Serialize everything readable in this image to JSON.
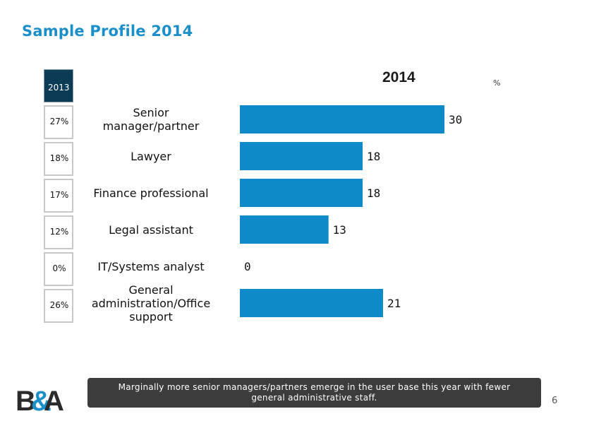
{
  "page": {
    "title": "Sample Profile 2014",
    "page_number": "6",
    "callout": "Marginally more senior managers/partners emerge in the user base this year with fewer general administrative staff.",
    "logo_text": "B&A"
  },
  "chart_data": {
    "type": "bar",
    "orientation": "horizontal",
    "title": "2014",
    "unit": "%",
    "categories": [
      "Senior manager/partner",
      "Lawyer",
      "Finance professional",
      "Legal assistant",
      "IT/Systems analyst",
      "General administration/Office support"
    ],
    "category_lines": [
      [
        "Senior",
        "manager/partner"
      ],
      [
        "Lawyer"
      ],
      [
        "Finance professional"
      ],
      [
        "Legal assistant"
      ],
      [
        "IT/Systems analyst"
      ],
      [
        "General",
        "administration/Office",
        "support"
      ]
    ],
    "series": [
      {
        "values": [
          30,
          18,
          18,
          13,
          0,
          21
        ],
        "color": "#0f8ac9"
      }
    ],
    "value_labels": [
      "30",
      "18",
      "18",
      "13",
      "0",
      "21"
    ],
    "xlim": [
      0,
      30
    ],
    "comparison": {
      "label": "2013",
      "values": [
        "27%",
        "18%",
        "17%",
        "12%",
        "0%",
        "26%"
      ],
      "header_color": "#0b3b55"
    }
  }
}
